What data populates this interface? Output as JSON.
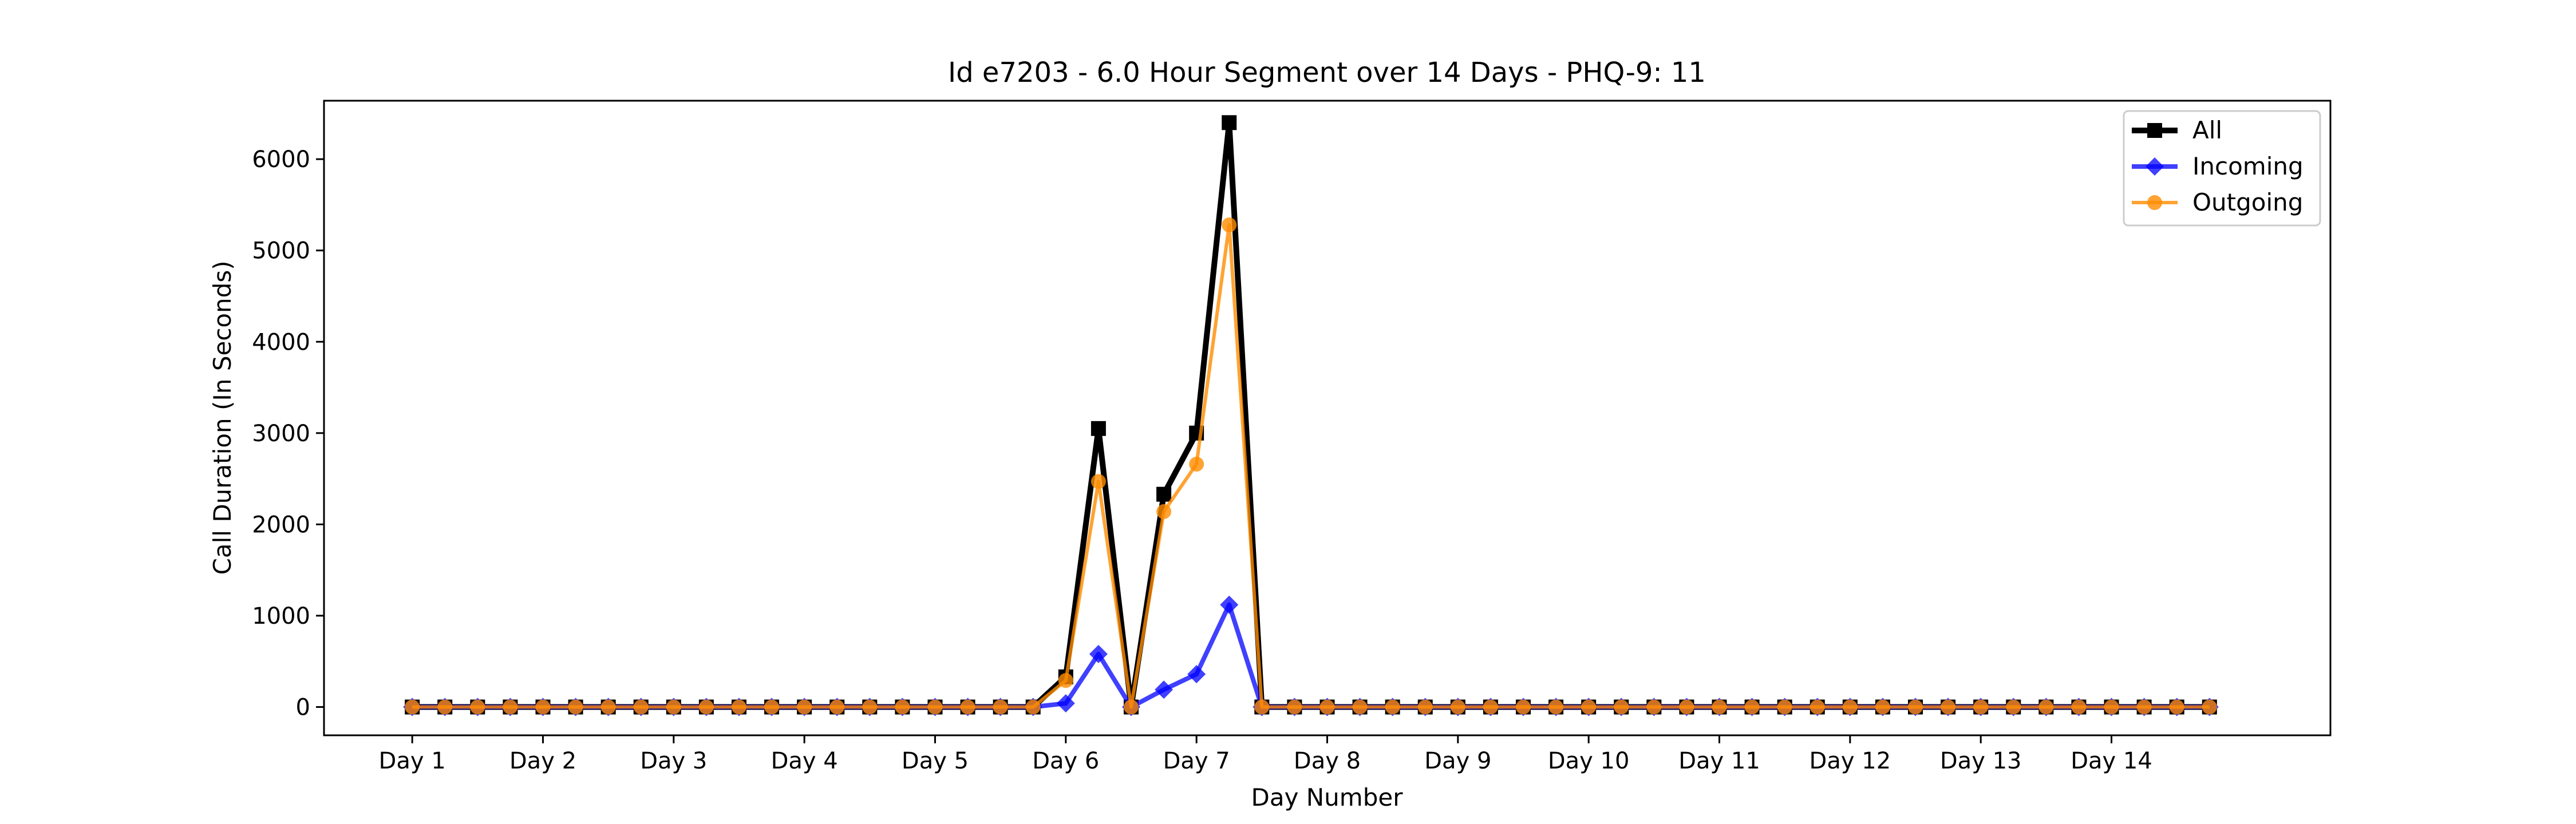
{
  "chart_data": {
    "type": "line",
    "title": "Id e7203 - 6.0 Hour Segment over 14 Days - PHQ-9: 11",
    "xlabel": "Day Number",
    "ylabel": "Call Duration (In Seconds)",
    "ylim": [
      -310,
      6640
    ],
    "xlim": [
      -2.7,
      58.7
    ],
    "grid": false,
    "legend_position": "top-right",
    "x_ticks": [
      {
        "label": "Day 1",
        "x": 0
      },
      {
        "label": "Day 2",
        "x": 4
      },
      {
        "label": "Day 3",
        "x": 8
      },
      {
        "label": "Day 4",
        "x": 12
      },
      {
        "label": "Day 5",
        "x": 16
      },
      {
        "label": "Day 6",
        "x": 20
      },
      {
        "label": "Day 7",
        "x": 24
      },
      {
        "label": "Day 8",
        "x": 28
      },
      {
        "label": "Day 9",
        "x": 32
      },
      {
        "label": "Day 10",
        "x": 36
      },
      {
        "label": "Day 11",
        "x": 40
      },
      {
        "label": "Day 12",
        "x": 44
      },
      {
        "label": "Day 13",
        "x": 48
      },
      {
        "label": "Day 14",
        "x": 52
      }
    ],
    "y_ticks": [
      0,
      1000,
      2000,
      3000,
      4000,
      5000,
      6000
    ],
    "series": [
      {
        "name": "All",
        "color": "#000000",
        "marker": "square",
        "values": [
          0,
          0,
          0,
          0,
          0,
          0,
          0,
          0,
          0,
          0,
          0,
          0,
          0,
          0,
          0,
          0,
          0,
          0,
          0,
          0,
          330,
          3050,
          0,
          2330,
          3000,
          6400,
          0,
          0,
          0,
          0,
          0,
          0,
          0,
          0,
          0,
          0,
          0,
          0,
          0,
          0,
          0,
          0,
          0,
          0,
          0,
          0,
          0,
          0,
          0,
          0,
          0,
          0,
          0,
          0,
          0,
          0
        ]
      },
      {
        "name": "Incoming",
        "color": "#0000ff",
        "marker": "diamond",
        "values": [
          0,
          0,
          0,
          0,
          0,
          0,
          0,
          0,
          0,
          0,
          0,
          0,
          0,
          0,
          0,
          0,
          0,
          0,
          0,
          0,
          40,
          580,
          0,
          190,
          360,
          1120,
          0,
          0,
          0,
          0,
          0,
          0,
          0,
          0,
          0,
          0,
          0,
          0,
          0,
          0,
          0,
          0,
          0,
          0,
          0,
          0,
          0,
          0,
          0,
          0,
          0,
          0,
          0,
          0,
          0,
          0
        ]
      },
      {
        "name": "Outgoing",
        "color": "#ff8c00",
        "marker": "circle",
        "values": [
          0,
          0,
          0,
          0,
          0,
          0,
          0,
          0,
          0,
          0,
          0,
          0,
          0,
          0,
          0,
          0,
          0,
          0,
          0,
          0,
          290,
          2470,
          0,
          2140,
          2660,
          5280,
          0,
          0,
          0,
          0,
          0,
          0,
          0,
          0,
          0,
          0,
          0,
          0,
          0,
          0,
          0,
          0,
          0,
          0,
          0,
          0,
          0,
          0,
          0,
          0,
          0,
          0,
          0,
          0,
          0,
          0
        ]
      }
    ]
  }
}
